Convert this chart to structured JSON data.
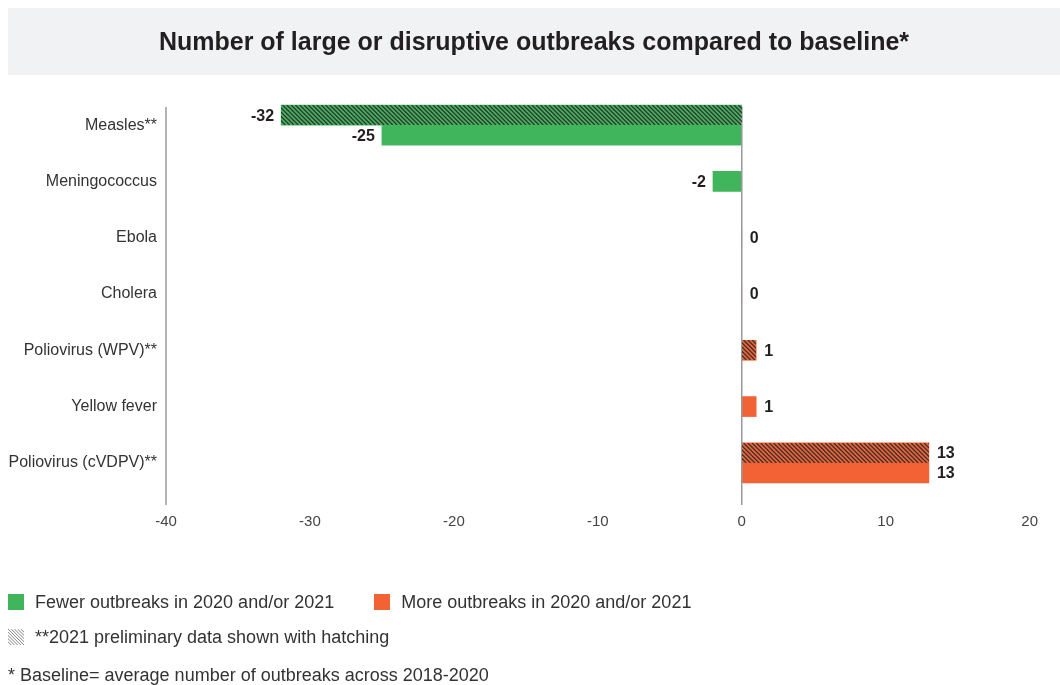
{
  "chart_data": {
    "type": "bar",
    "orientation": "horizontal",
    "title": "Number of large or disruptive outbreaks compared to baseline*",
    "categories": [
      "Measles**",
      "Meningococcus",
      "Ebola",
      "Cholera",
      "Poliovirus (WPV)**",
      "Yellow fever",
      "Poliovirus (cVDPV)**"
    ],
    "series": [
      {
        "name": "Fewer outbreaks in 2020 and/or 2021",
        "color": "#41b55c",
        "values": [
          -25,
          -2,
          null,
          null,
          null,
          null,
          null
        ]
      },
      {
        "name": "More outbreaks in 2020 and/or 2021",
        "color": "#f26234",
        "values": [
          null,
          null,
          0,
          0,
          null,
          1,
          13
        ]
      },
      {
        "color": "#333333",
        "colors": [
          "#41b55c",
          null,
          null,
          null,
          "#f26234",
          null,
          "#f26234"
        ],
        "values": [
          -32,
          null,
          null,
          null,
          1,
          null,
          13
        ]
      }
    ],
    "xlim": [
      -40,
      20
    ],
    "xticks": [
      -40,
      -30,
      -20,
      -10,
      0,
      10,
      20
    ],
    "grid": false,
    "ref_lines": [
      {
        "axis": "x",
        "value": 0,
        "color": "#9a9a9a"
      }
    ],
    "data_labels": true,
    "legend": "bottom left",
    "annotations": [
      "**2021 preliminary data shown with hatching",
      "* Baseline= average number of outbreaks across 2018-2020"
    ]
  }
}
